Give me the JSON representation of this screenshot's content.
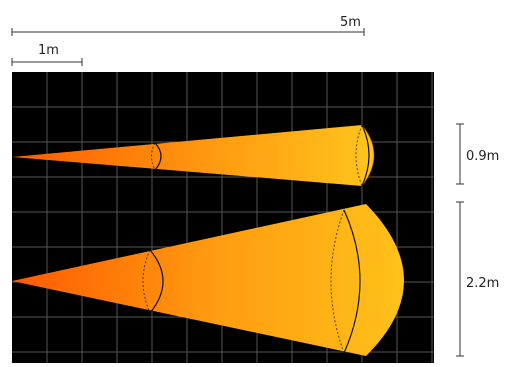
{
  "scale_bars": {
    "five_m": "5m",
    "one_m": "1m"
  },
  "beams": {
    "narrow": {
      "label": "0.9m"
    },
    "wide": {
      "label": "2.2m"
    }
  },
  "colors": {
    "panel_background": "#000000",
    "grid": "#5a5a5a",
    "beam_start": "#ff6a00",
    "beam_end": "#ffc21a",
    "outline": "#111111",
    "ruler": "#333333"
  }
}
